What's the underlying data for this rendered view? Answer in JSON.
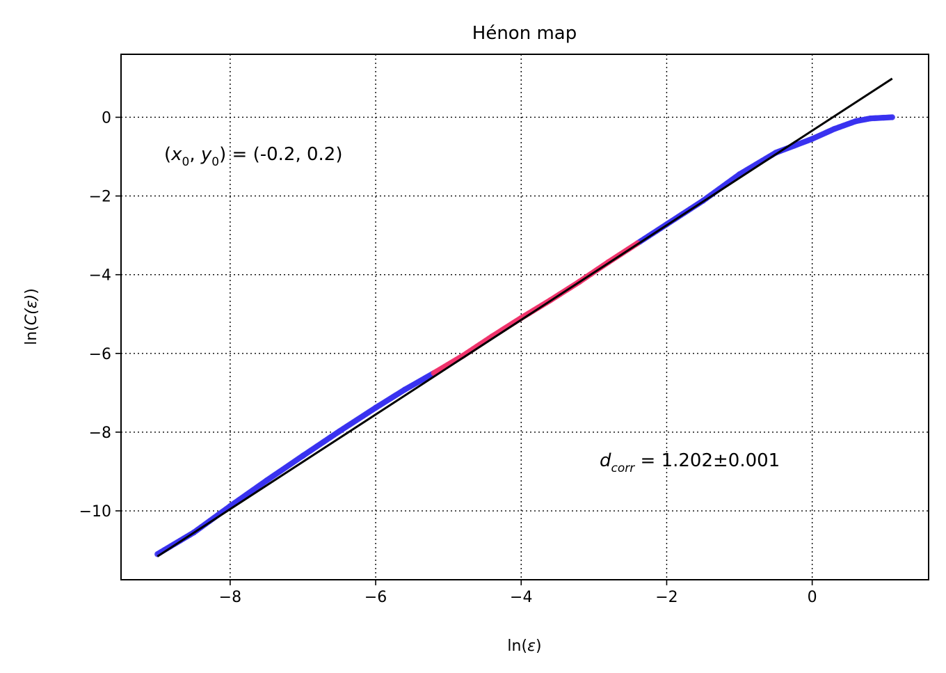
{
  "chart_data": {
    "type": "scatter",
    "title": "Hénon map",
    "xlabel_main": "ln(",
    "xlabel_var": "ε",
    "xlabel_close": ")",
    "ylabel_main": "ln(",
    "ylabel_var": "C(ε)",
    "ylabel_close": ")",
    "xlim": [
      -9.5,
      1.6
    ],
    "ylim": [
      -11.75,
      1.6
    ],
    "xticks": [
      -8,
      -6,
      -4,
      -2,
      0
    ],
    "yticks": [
      0,
      -2,
      -4,
      -6,
      -8,
      -10
    ],
    "xtick_labels": [
      "−8",
      "−6",
      "−4",
      "−2",
      "0"
    ],
    "ytick_labels": [
      "0",
      "−2",
      "−4",
      "−6",
      "−8",
      "−10"
    ],
    "grid": true,
    "grid_style": "dotted",
    "series": [
      {
        "color": "#3a32f0",
        "marker": "circle",
        "x_range": [
          -9.0,
          1.1
        ],
        "points": [
          [
            -9.0,
            -11.1
          ],
          [
            -8.5,
            -10.55
          ],
          [
            -8.0,
            -9.88
          ],
          [
            -7.5,
            -9.23
          ],
          [
            -7.0,
            -8.6
          ],
          [
            -6.5,
            -7.98
          ],
          [
            -6.0,
            -7.38
          ],
          [
            -5.6,
            -6.92
          ],
          [
            -5.2,
            -6.5
          ],
          [
            -2.4,
            -3.2
          ],
          [
            -2.0,
            -2.72
          ],
          [
            -1.5,
            -2.12
          ],
          [
            -1.0,
            -1.45
          ],
          [
            -0.5,
            -0.9
          ],
          [
            0.0,
            -0.55
          ],
          [
            0.3,
            -0.3
          ],
          [
            0.6,
            -0.1
          ],
          [
            0.8,
            -0.03
          ],
          [
            1.1,
            0.0
          ]
        ]
      },
      {
        "color": "#f0336b",
        "marker": "circle",
        "x_range": [
          -5.2,
          -2.4
        ],
        "points": [
          [
            -5.2,
            -6.5
          ],
          [
            -4.8,
            -6.06
          ],
          [
            -4.4,
            -5.57
          ],
          [
            -4.0,
            -5.1
          ],
          [
            -3.6,
            -4.65
          ],
          [
            -3.2,
            -4.18
          ],
          [
            -2.8,
            -3.68
          ],
          [
            -2.4,
            -3.2
          ]
        ]
      }
    ],
    "fit_line": {
      "color": "#000000",
      "slope": 1.202,
      "intercept": -0.34,
      "x_range": [
        -9.0,
        1.1
      ]
    },
    "annotations": {
      "init_prefix": "(",
      "init_var1": "x",
      "init_sub1": "0",
      "init_sep": ", ",
      "init_var2": "y",
      "init_sub2": "0",
      "init_suffix": ") = (-0.2, 0.2)",
      "dcorr_var": "d",
      "dcorr_sub": "corr",
      "dcorr_value": " = 1.202±0.001"
    }
  }
}
